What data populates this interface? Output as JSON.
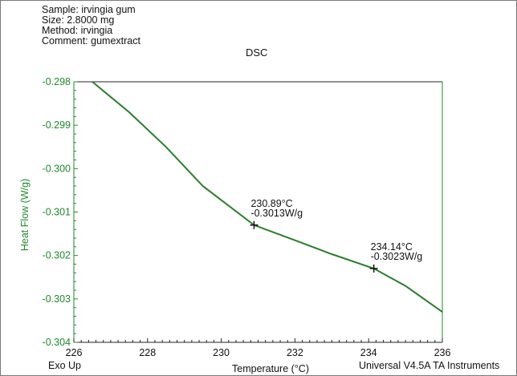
{
  "header": {
    "sample": "Sample: irvingia gum",
    "size": "Size:  2.8000 mg",
    "method": "Method: irvingia",
    "comment": "Comment: gumextract"
  },
  "exo_label": "Exo Up",
  "footer": "Universal V4.5A TA Instruments",
  "colors": {
    "curve": "#2a7d2a",
    "axis": "#1e8a2c",
    "text": "#111111"
  },
  "chart_data": {
    "type": "line",
    "title": "DSC",
    "xlabel": "Temperature (°C)",
    "ylabel": "Heat Flow (W/g)",
    "xlim": [
      226,
      236
    ],
    "ylim": [
      -0.304,
      -0.298
    ],
    "x_ticks": [
      "226",
      "228",
      "230",
      "232",
      "234",
      "236"
    ],
    "y_ticks": [
      "-0.298",
      "-0.299",
      "-0.300",
      "-0.301",
      "-0.302",
      "-0.303",
      "-0.304"
    ],
    "series": [
      {
        "x": [
          226.5,
          227.5,
          228.5,
          229.5,
          230.89,
          232.0,
          233.0,
          234.14,
          235.0,
          236.0
        ],
        "y": [
          -0.298,
          -0.2987,
          -0.2995,
          -0.3004,
          -0.3013,
          -0.30165,
          -0.30197,
          -0.3023,
          -0.3027,
          -0.3033
        ]
      }
    ],
    "annotations": [
      {
        "x": 230.89,
        "y": -0.3013,
        "label_temp": "230.89°C",
        "label_flow": "-0.3013W/g"
      },
      {
        "x": 234.14,
        "y": -0.3023,
        "label_temp": "234.14°C",
        "label_flow": "-0.3023W/g"
      }
    ]
  }
}
